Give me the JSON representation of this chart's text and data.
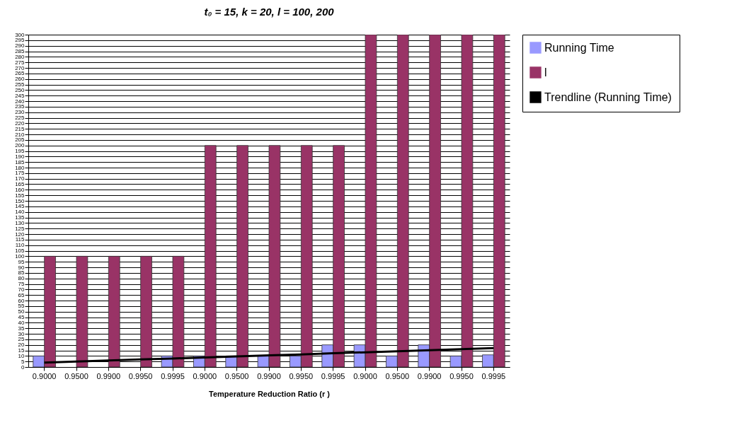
{
  "chart_data": {
    "type": "bar",
    "title": "t₀ = 15, k = 20, l = 100, 200",
    "xlabel": "Temperature Reduction Ratio (r )",
    "categories": [
      "0.9000",
      "0.9500",
      "0.9900",
      "0.9950",
      "0.9995",
      "0.9000",
      "0.9500",
      "0.9900",
      "0.9950",
      "0.9995",
      "0.9000",
      "0.9500",
      "0.9900",
      "0.9950",
      "0.9995"
    ],
    "series": [
      {
        "name": "Running Time",
        "color": "#9999ff",
        "values": [
          10,
          0,
          0,
          0,
          10,
          10,
          10,
          10,
          10,
          20,
          20,
          10,
          20,
          10,
          11
        ]
      },
      {
        "name": "l",
        "color": "#993366",
        "values": [
          100,
          100,
          100,
          100,
          100,
          200,
          200,
          200,
          200,
          200,
          300,
          300,
          300,
          300,
          300
        ]
      },
      {
        "name": "Trendline (Running Time)",
        "type": "line",
        "color": "#000000",
        "values": [
          4,
          4.9,
          5.9,
          6.8,
          7.7,
          8.6,
          9.6,
          10.5,
          11.4,
          12.4,
          13.3,
          14.2,
          15.1,
          16.1,
          17
        ]
      }
    ],
    "ylim": [
      0,
      300
    ],
    "yticks": [
      0,
      5,
      10,
      15,
      20,
      25,
      30,
      35,
      40,
      45,
      50,
      55,
      60,
      65,
      70,
      75,
      80,
      85,
      90,
      95,
      100,
      105,
      110,
      115,
      120,
      125,
      130,
      135,
      140,
      145,
      150,
      155,
      160,
      165,
      170,
      175,
      180,
      185,
      190,
      195,
      200,
      205,
      210,
      215,
      220,
      225,
      230,
      235,
      240,
      245,
      250,
      255,
      260,
      265,
      270,
      275,
      280,
      285,
      290,
      295,
      300
    ],
    "grid": "y",
    "legend": "top right"
  }
}
